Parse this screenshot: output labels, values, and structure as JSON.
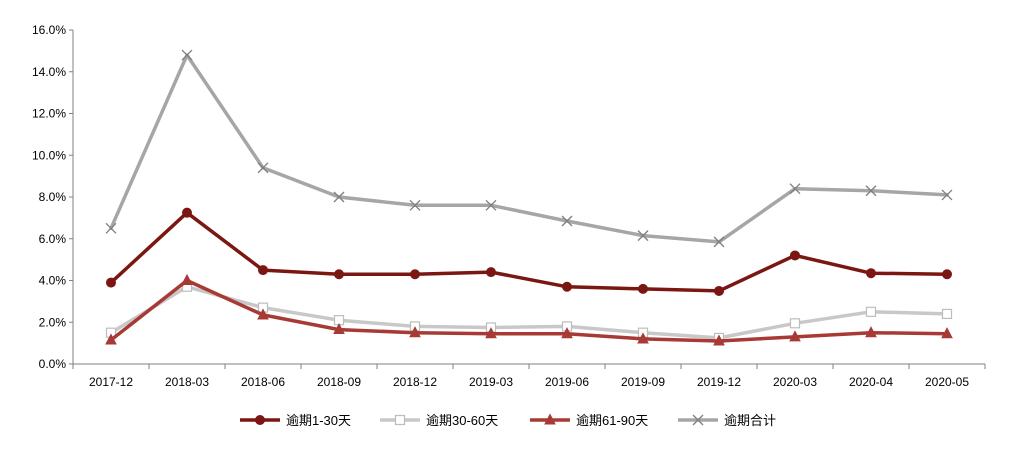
{
  "chart_data": {
    "type": "line",
    "title": "",
    "xlabel": "",
    "ylabel": "",
    "categories": [
      "2017-12",
      "2018-03",
      "2018-06",
      "2018-09",
      "2018-12",
      "2019-03",
      "2019-06",
      "2019-09",
      "2019-12",
      "2020-03",
      "2020-04",
      "2020-05"
    ],
    "ylim": [
      0,
      16
    ],
    "yticks": [
      "0.0%",
      "2.0%",
      "4.0%",
      "6.0%",
      "8.0%",
      "10.0%",
      "12.0%",
      "14.0%",
      "16.0%"
    ],
    "grid": false,
    "legend_position": "bottom",
    "series": [
      {
        "name": "逾期1-30天",
        "color": "#7B1712",
        "marker": "circle",
        "values": [
          3.9,
          7.25,
          4.5,
          4.3,
          4.3,
          4.4,
          3.7,
          3.6,
          3.5,
          5.2,
          4.35,
          4.3
        ]
      },
      {
        "name": "逾期30-60天",
        "color": "#C8C8C8",
        "marker": "square",
        "values": [
          1.5,
          3.7,
          2.7,
          2.1,
          1.8,
          1.75,
          1.8,
          1.5,
          1.25,
          1.95,
          2.5,
          2.4
        ]
      },
      {
        "name": "逾期61-90天",
        "color": "#A83A35",
        "marker": "triangle",
        "values": [
          1.15,
          4.0,
          2.35,
          1.65,
          1.5,
          1.45,
          1.45,
          1.2,
          1.1,
          1.3,
          1.5,
          1.45
        ]
      },
      {
        "name": "逾期合计",
        "color": "#A6A6A6",
        "marker": "x",
        "values": [
          6.5,
          14.8,
          9.4,
          8.0,
          7.6,
          7.6,
          6.85,
          6.15,
          5.85,
          8.4,
          8.3,
          8.1
        ]
      }
    ]
  }
}
